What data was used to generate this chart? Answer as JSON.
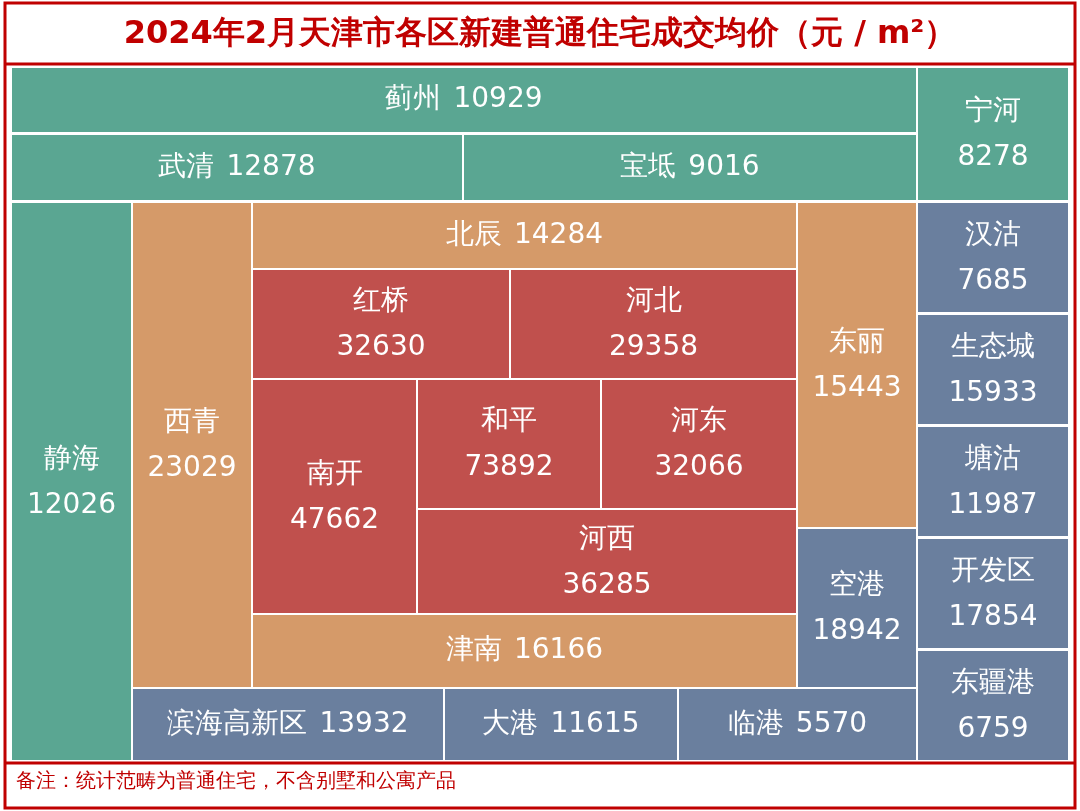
{
  "chart_data": {
    "type": "other",
    "title": "2024年2月天津市各区新建普通住宅成交均价（元 / m²）",
    "categories": [
      "蓟州",
      "武清",
      "宝坻",
      "宁河",
      "静海",
      "西青",
      "北辰",
      "红桥",
      "河北",
      "南开",
      "和平",
      "河东",
      "河西",
      "津南",
      "东丽",
      "空港",
      "滨海高新区",
      "大港",
      "临港",
      "汉沽",
      "生态城",
      "塘沽",
      "开发区",
      "东疆港"
    ],
    "values": [
      10929,
      12878,
      9016,
      8278,
      12026,
      23029,
      14284,
      32630,
      29358,
      47662,
      73892,
      32066,
      36285,
      16166,
      15443,
      18942,
      13932,
      11615,
      5570,
      7685,
      15933,
      11987,
      17854,
      6759
    ],
    "colors": [
      "#5aa692",
      "#5aa692",
      "#5aa692",
      "#5aa692",
      "#5aa692",
      "#d59a69",
      "#d59a69",
      "#c0504d",
      "#c0504d",
      "#c0504d",
      "#c0504d",
      "#c0504d",
      "#c0504d",
      "#d59a69",
      "#d59a69",
      "#6a7f9e",
      "#6a7f9e",
      "#6a7f9e",
      "#6a7f9e",
      "#6a7f9e",
      "#6a7f9e",
      "#6a7f9e",
      "#6a7f9e",
      "#6a7f9e"
    ],
    "data_labels": true,
    "annotations": [
      "备注：统计范畴为普通住宅，不含别墅和公寓产品"
    ]
  }
}
